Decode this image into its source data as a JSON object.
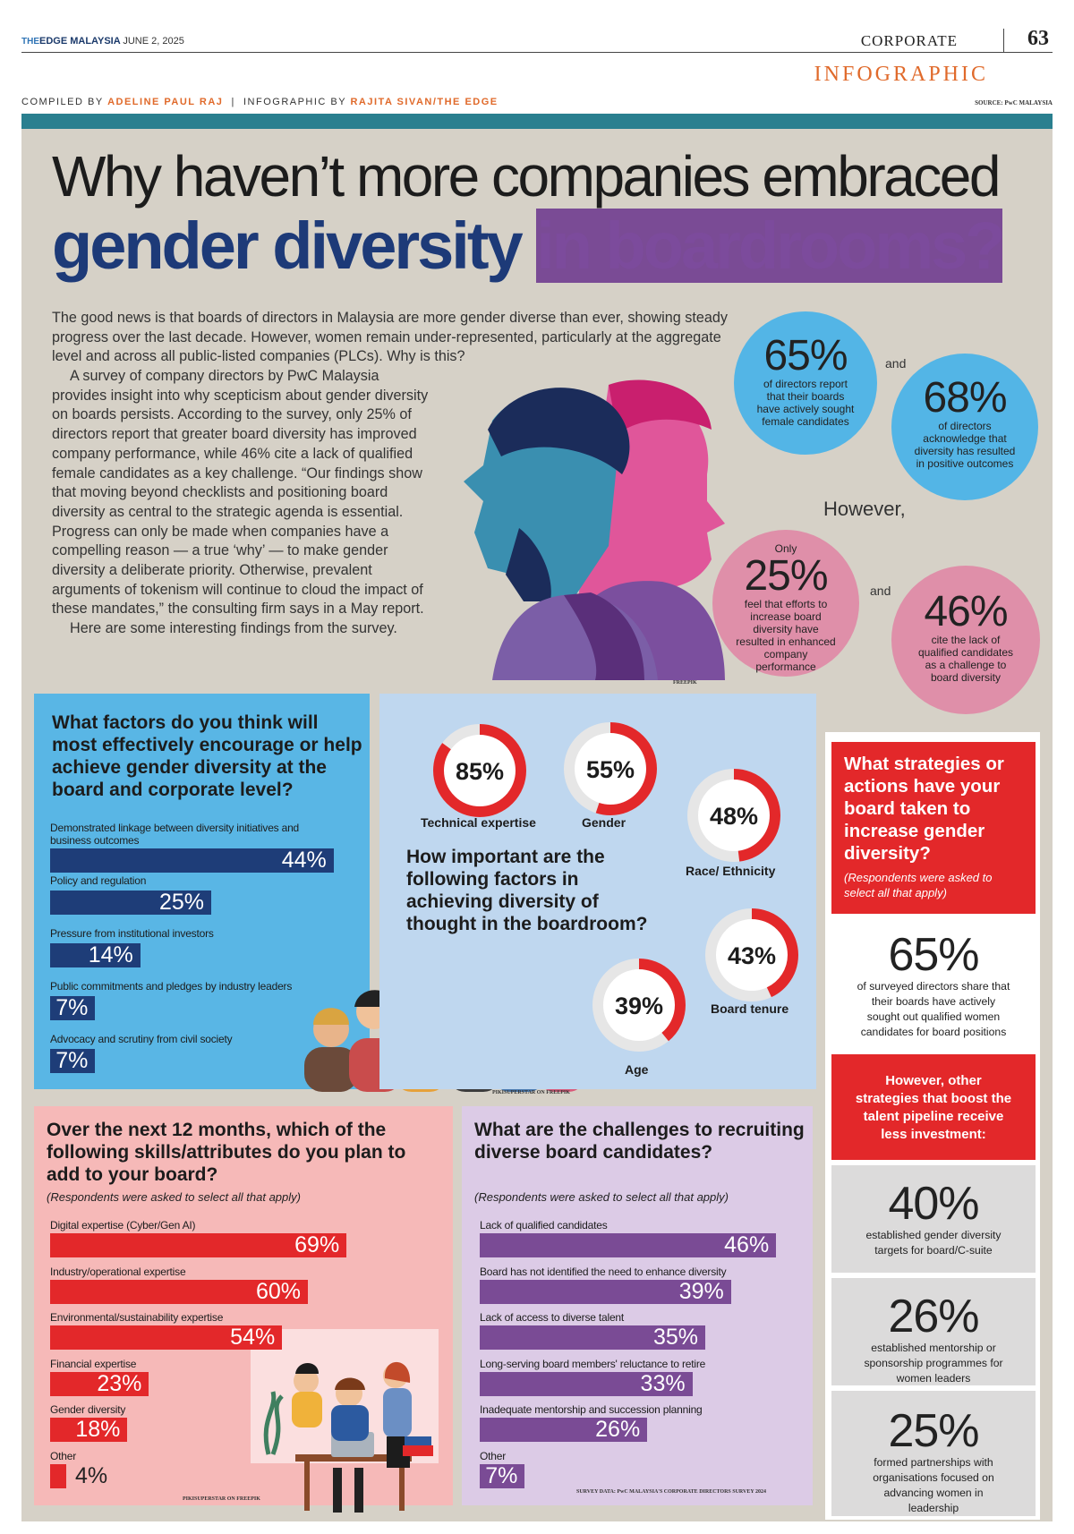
{
  "header": {
    "brand_prefix": "THE",
    "brand": "EDGE MALAYSIA",
    "date": "JUNE 2, 2025",
    "section": "CORPORATE",
    "page_number": "63",
    "label": "INFOGRAPHIC",
    "compiled_by_label": "COMPILED BY",
    "compiled_by": "ADELINE PAUL RAJ",
    "infographic_by_label": "INFOGRAPHIC BY",
    "infographic_by": "RAJITA SIVAN/THE EDGE",
    "source": "SOURCE: PwC MALAYSIA"
  },
  "headline": {
    "line1": "Why haven’t more companies embraced",
    "line2_blue": "gender diversity",
    "line2_purple": "in boardrooms?"
  },
  "intro": {
    "p1": "The good news is that boards of directors in Malaysia are more gender diverse than ever, showing steady progress over the last decade. However, women remain under-represented, particularly at the aggregate level and across all public-listed companies (PLCs). Why is this?",
    "p2": "A survey of company directors by PwC Malaysia provides insight into why scepticism about gender diversity on boards persists. According to the survey, only 25% of directors report that greater board diversity has improved company performance, while 46% cite a lack of qualified female candidates as a key challenge. “Our findings show that moving beyond checklists and positioning board diversity as central to the strategic agenda is essential. Progress can only be made when companies have a compelling reason — a true ‘why’ — to make gender diversity a deliberate priority. Otherwise, prevalent arguments of tokenism will continue to cloud the impact of these mandates,” the consulting firm says in a May report.",
    "p3": "Here are some interesting findings from the survey."
  },
  "stats": {
    "s65": {
      "value": "65%",
      "text": "of directors report that their boards have actively sought female candidates"
    },
    "and1": "and",
    "s68": {
      "value": "68%",
      "text": "of directors acknowledge that diversity has resulted in positive outcomes"
    },
    "however": "However,",
    "s25": {
      "pre": "Only",
      "value": "25%",
      "text": "feel that efforts to increase board diversity have resulted in enhanced company performance"
    },
    "and2": "and",
    "s46": {
      "value": "46%",
      "text": "cite the lack of qualified candidates as a challenge to board diversity"
    },
    "credit": "FREEPIK"
  },
  "factors": {
    "question": "What factors do you think will most effectively encourage or help achieve gender diversity at the board and corporate level?",
    "items": [
      {
        "label": "Demonstrated linkage between diversity initiatives and business outcomes",
        "value": "44%"
      },
      {
        "label": "Policy and regulation",
        "value": "25%"
      },
      {
        "label": "Pressure from institutional investors",
        "value": "14%"
      },
      {
        "label": "Public commitments and pledges by industry leaders",
        "value": "7%"
      },
      {
        "label": "Advocacy and scrutiny from civil society",
        "value": "7%"
      }
    ]
  },
  "importance": {
    "question": "How important are the following factors in achieving diversity of thought in the boardroom?",
    "items": [
      {
        "label": "Technical expertise",
        "value": "85%"
      },
      {
        "label": "Gender",
        "value": "55%"
      },
      {
        "label": "Race/ Ethnicity",
        "value": "48%"
      },
      {
        "label": "Board tenure",
        "value": "43%"
      },
      {
        "label": "Age",
        "value": "39%"
      }
    ],
    "credit": "PIKISUPERSTAR ON FREEPIK"
  },
  "strategies": {
    "question": "What strategies or actions have your board taken to increase gender diversity?",
    "note": "(Respondents were asked to select all that apply)",
    "main": {
      "value": "65%",
      "text": "of surveyed directors share that their boards have actively sought out qualified women candidates for board positions"
    },
    "however": "However, other strategies that boost the talent pipeline receive less investment:",
    "items": [
      {
        "value": "40%",
        "text": "established gender diversity targets for board/C-suite"
      },
      {
        "value": "26%",
        "text": "established mentorship or sponsorship programmes for women leaders"
      },
      {
        "value": "25%",
        "text": "formed partnerships with organisations focused on advancing women in leadership"
      }
    ]
  },
  "skills": {
    "question": "Over the next 12 months, which of the following skills/attributes do you plan to add to your board?",
    "note": "(Respondents were asked to select all that apply)",
    "items": [
      {
        "label": "Digital expertise (Cyber/Gen AI)",
        "value": "69%"
      },
      {
        "label": "Industry/operational expertise",
        "value": "60%"
      },
      {
        "label": "Environmental/sustainability expertise",
        "value": "54%"
      },
      {
        "label": "Financial expertise",
        "value": "23%"
      },
      {
        "label": "Gender diversity",
        "value": "18%"
      },
      {
        "label": "Other",
        "value": "4%"
      }
    ],
    "credit": "PIKISUPERSTAR ON FREEPIK"
  },
  "challenges": {
    "question": "What are the challenges to recruiting diverse board candidates?",
    "note": "(Respondents were asked to select all that apply)",
    "items": [
      {
        "label": "Lack of qualified candidates",
        "value": "46%"
      },
      {
        "label": "Board has not identified the need to enhance diversity",
        "value": "39%"
      },
      {
        "label": "Lack of access to diverse talent",
        "value": "35%"
      },
      {
        "label": "Long-serving board members' reluctance to retire",
        "value": "33%"
      },
      {
        "label": "Inadequate mentorship and succession planning",
        "value": "26%"
      },
      {
        "label": "Other",
        "value": "7%"
      }
    ],
    "credit": "SURVEY DATA: PwC MALAYSIA'S CORPORATE DIRECTORS SURVEY 2024"
  },
  "colors": {
    "navy": "#1e3d78",
    "red": "#e3282a",
    "purple": "#7a4b95",
    "sky": "#59b6e5",
    "pink": "#f6b9b8",
    "lavender": "#dccbe6",
    "beige": "#d6d1c7"
  }
}
